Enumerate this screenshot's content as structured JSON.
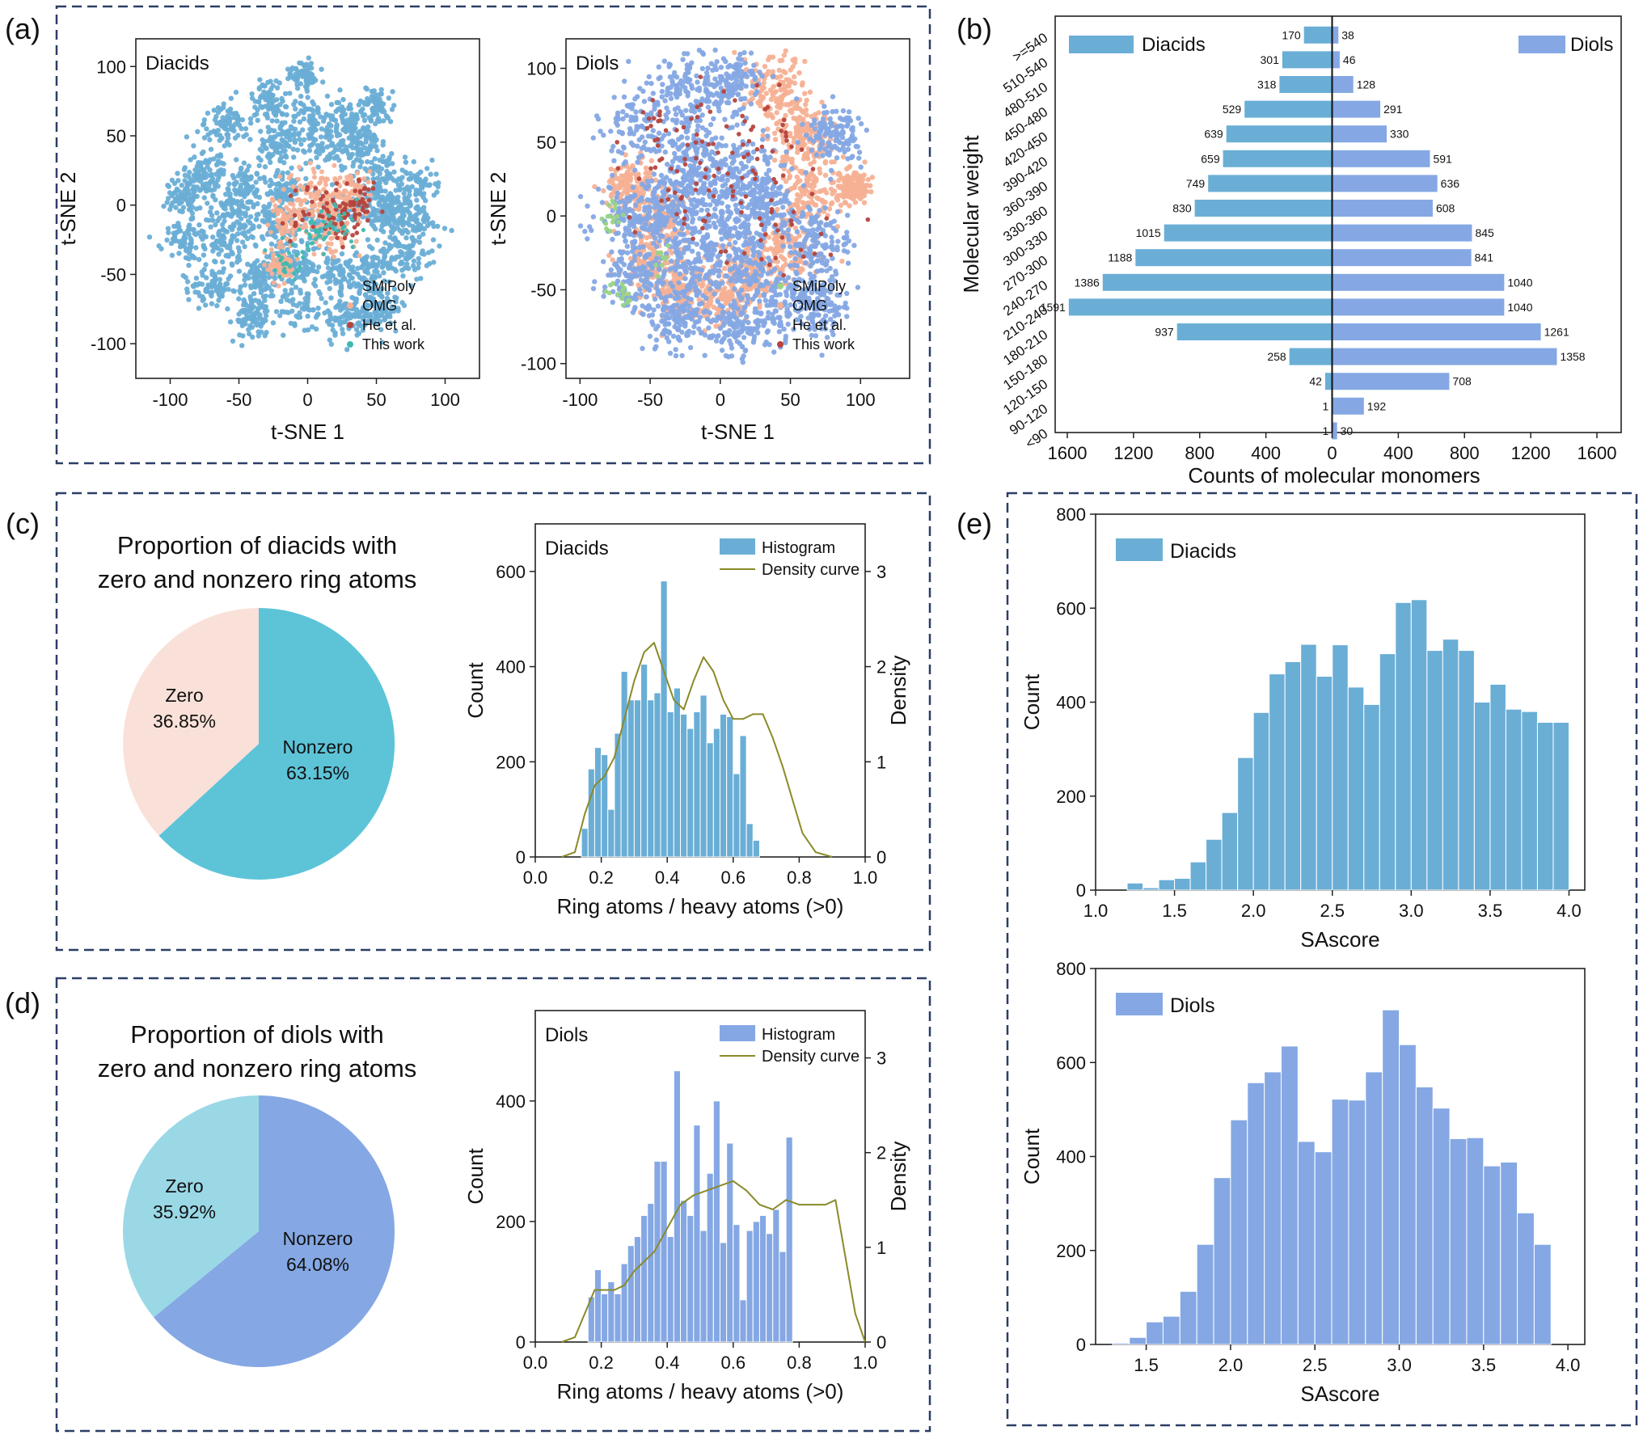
{
  "colors": {
    "diacid_blue": "#6aaed6",
    "diol_blue": "#85a8e4",
    "salmon": "#f5b195",
    "dark_red": "#b5453e",
    "teal": "#3fb9b0",
    "green": "#98d486",
    "pie_teal": "#5dc4d8",
    "pie_pink": "#f9e1d9",
    "pie_light": "#9ad8e6",
    "olive": "#8a8a2a",
    "frame": "#2c3e66"
  },
  "panels": {
    "a": "(a)",
    "b": "(b)",
    "c": "(c)",
    "d": "(d)",
    "e": "(e)"
  },
  "chart_data": [
    {
      "id": "a1",
      "type": "scatter",
      "title": "Diacids",
      "xlabel": "t-SNE 1",
      "ylabel": "t-SNE 2",
      "xlim": [
        -125,
        125
      ],
      "ylim": [
        -125,
        120
      ],
      "xticks": [
        -100,
        -50,
        0,
        50,
        100
      ],
      "yticks": [
        -100,
        -50,
        0,
        50,
        100
      ],
      "legend": [
        "SMiPoly",
        "OMG",
        "He et al.",
        "This work"
      ],
      "legend_colors": [
        "#6aaed6",
        "#f5b195",
        "#b5453e",
        "#3fb9b0"
      ]
    },
    {
      "id": "a2",
      "type": "scatter",
      "title": "Diols",
      "xlabel": "t-SNE 1",
      "ylabel": "t-SNE 2",
      "xlim": [
        -110,
        135
      ],
      "ylim": [
        -110,
        120
      ],
      "xticks": [
        -100,
        -50,
        0,
        50,
        100
      ],
      "yticks": [
        -100,
        -50,
        0,
        50,
        100
      ],
      "legend": [
        "SMiPoly",
        "OMG",
        "He et al.",
        "This work"
      ],
      "legend_colors": [
        "#98d486",
        "#f5b195",
        "#85a8e4",
        "#b5453e"
      ]
    },
    {
      "id": "b",
      "type": "bar",
      "orientation": "horizontal-back-to-back",
      "ylabel": "Molecular weight",
      "xlabel": "Counts of molecular monomers",
      "xticks": [
        "1600",
        "1200",
        "800",
        "400",
        "0",
        "400",
        "800",
        "1200",
        "1600"
      ],
      "categories": [
        ">=540",
        "510-540",
        "480-510",
        "450-480",
        "420-450",
        "390-420",
        "360-390",
        "330-360",
        "300-330",
        "270-300",
        "240-270",
        "210-240",
        "180-210",
        "150-180",
        "120-150",
        "90-120",
        "<90"
      ],
      "series": [
        {
          "name": "Diacids",
          "values": [
            170,
            301,
            318,
            529,
            639,
            659,
            749,
            830,
            1015,
            1188,
            1386,
            1591,
            937,
            258,
            42,
            1,
            1
          ]
        },
        {
          "name": "Diols",
          "values": [
            38,
            46,
            128,
            291,
            330,
            591,
            636,
            608,
            845,
            841,
            1040,
            1040,
            1261,
            1358,
            708,
            192,
            30
          ]
        }
      ],
      "xlim": [
        -1600,
        1600
      ]
    },
    {
      "id": "c_pie",
      "type": "pie",
      "title_lines": [
        "Proportion of diacids with",
        "zero and nonzero ring atoms"
      ],
      "slices": [
        {
          "label": "Nonzero",
          "pct_label": "63.15%",
          "value": 63.15
        },
        {
          "label": "Zero",
          "pct_label": "36.85%",
          "value": 36.85
        }
      ]
    },
    {
      "id": "c_hist",
      "type": "bar",
      "title": "Diacids",
      "xlabel": "Ring atoms / heavy atoms (>0)",
      "ylabel": "Count",
      "y2label": "Density",
      "legend": [
        "Histogram",
        "Density curve"
      ],
      "xlim": [
        0,
        1.0
      ],
      "ylim": [
        0,
        700
      ],
      "y2lim": [
        0,
        3.5
      ],
      "xticks": [
        "0.0",
        "0.2",
        "0.4",
        "0.6",
        "0.8",
        "1.0"
      ],
      "yticks": [
        "0",
        "200",
        "400",
        "600"
      ],
      "y2ticks": [
        "0",
        "1",
        "2",
        "3"
      ],
      "bin_start": 0.14,
      "bin_width": 0.02,
      "values": [
        60,
        185,
        230,
        215,
        100,
        260,
        390,
        330,
        330,
        405,
        330,
        345,
        580,
        305,
        355,
        300,
        270,
        305,
        340,
        240,
        270,
        300,
        295,
        175,
        255,
        70,
        35
      ],
      "density_x": [
        0.08,
        0.12,
        0.15,
        0.18,
        0.21,
        0.24,
        0.27,
        0.3,
        0.33,
        0.36,
        0.39,
        0.42,
        0.45,
        0.48,
        0.51,
        0.54,
        0.57,
        0.6,
        0.63,
        0.66,
        0.69,
        0.72,
        0.75,
        0.78,
        0.81,
        0.85,
        0.9
      ],
      "density_y": [
        0.0,
        0.05,
        0.45,
        0.75,
        0.85,
        1.05,
        1.45,
        1.85,
        2.15,
        2.25,
        1.95,
        1.65,
        1.55,
        1.85,
        2.1,
        1.95,
        1.65,
        1.45,
        1.45,
        1.5,
        1.5,
        1.25,
        0.95,
        0.6,
        0.25,
        0.05,
        0.0
      ]
    },
    {
      "id": "d_pie",
      "type": "pie",
      "title_lines": [
        "Proportion of diols with",
        "zero and nonzero ring atoms"
      ],
      "slices": [
        {
          "label": "Nonzero",
          "pct_label": "64.08%",
          "value": 64.08
        },
        {
          "label": "Zero",
          "pct_label": "35.92%",
          "value": 35.92
        }
      ]
    },
    {
      "id": "d_hist",
      "type": "bar",
      "title": "Diols",
      "xlabel": "Ring atoms / heavy atoms (>0)",
      "ylabel": "Count",
      "y2label": "Density",
      "legend": [
        "Histogram",
        "Density curve"
      ],
      "xlim": [
        0,
        1.0
      ],
      "ylim": [
        0,
        550
      ],
      "y2lim": [
        0,
        3.5
      ],
      "xticks": [
        "0.0",
        "0.2",
        "0.4",
        "0.6",
        "0.8",
        "1.0"
      ],
      "yticks": [
        "0",
        "200",
        "400"
      ],
      "y2ticks": [
        "0",
        "1",
        "2",
        "3"
      ],
      "bin_start": 0.16,
      "bin_width": 0.02,
      "values": [
        75,
        120,
        80,
        100,
        80,
        130,
        160,
        175,
        210,
        230,
        300,
        300,
        175,
        450,
        235,
        210,
        360,
        185,
        280,
        400,
        165,
        330,
        195,
        70,
        185,
        200,
        210,
        180,
        220,
        150,
        340
      ],
      "density_x": [
        0.08,
        0.12,
        0.15,
        0.18,
        0.21,
        0.24,
        0.27,
        0.3,
        0.33,
        0.36,
        0.4,
        0.44,
        0.48,
        0.52,
        0.56,
        0.6,
        0.64,
        0.68,
        0.72,
        0.76,
        0.8,
        0.84,
        0.88,
        0.91,
        0.94,
        0.97,
        1.0
      ],
      "density_y": [
        0.0,
        0.05,
        0.3,
        0.55,
        0.55,
        0.55,
        0.6,
        0.75,
        0.85,
        0.95,
        1.2,
        1.45,
        1.55,
        1.6,
        1.65,
        1.7,
        1.6,
        1.45,
        1.4,
        1.5,
        1.45,
        1.45,
        1.45,
        1.5,
        0.9,
        0.3,
        0.0
      ]
    },
    {
      "id": "e1",
      "type": "bar",
      "legend": [
        "Diacids"
      ],
      "xlabel": "SAscore",
      "ylabel": "Count",
      "xlim": [
        1.0,
        4.1
      ],
      "ylim": [
        0,
        800
      ],
      "xticks": [
        "1.0",
        "1.5",
        "2.0",
        "2.5",
        "3.0",
        "3.5",
        "4.0"
      ],
      "yticks": [
        "0",
        "200",
        "400",
        "600",
        "800"
      ],
      "bin_start": 1.2,
      "bin_width": 0.1,
      "values": [
        15,
        5,
        22,
        25,
        60,
        108,
        165,
        282,
        378,
        460,
        486,
        523,
        455,
        522,
        432,
        395,
        503,
        612,
        618,
        510,
        534,
        510,
        400,
        438,
        385,
        380,
        357,
        357
      ]
    },
    {
      "id": "e2",
      "type": "bar",
      "legend": [
        "Diols"
      ],
      "xlabel": "SAscore",
      "ylabel": "Count",
      "xlim": [
        1.2,
        4.1
      ],
      "ylim": [
        0,
        800
      ],
      "xticks": [
        "1.5",
        "2.0",
        "2.5",
        "3.0",
        "3.5",
        "4.0"
      ],
      "yticks": [
        "0",
        "200",
        "400",
        "600",
        "800"
      ],
      "bin_start": 1.3,
      "bin_width": 0.1,
      "values": [
        3,
        15,
        48,
        60,
        113,
        213,
        355,
        478,
        557,
        580,
        635,
        432,
        410,
        522,
        520,
        580,
        712,
        638,
        548,
        503,
        438,
        440,
        380,
        388,
        280,
        213
      ]
    }
  ]
}
